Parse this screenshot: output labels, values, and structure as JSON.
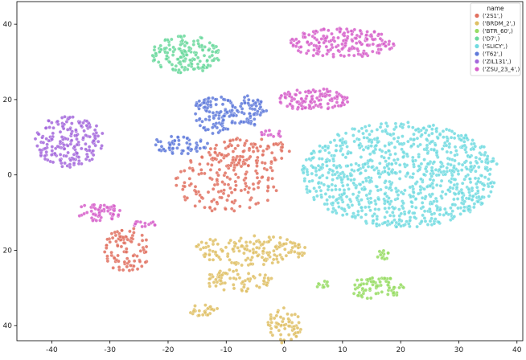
{
  "chart_data": {
    "type": "scatter",
    "title": "",
    "xlabel": "",
    "ylabel": "",
    "xlim": [
      -46,
      41
    ],
    "ylim": [
      -46,
      44
    ],
    "y_axis_inverted": true,
    "grid": false,
    "x_ticks": [
      -40,
      -30,
      -20,
      -10,
      0,
      10,
      20,
      30,
      40
    ],
    "y_ticks": [
      40,
      20,
      0,
      20,
      40
    ],
    "y_tick_values": [
      -40,
      -20,
      0,
      20,
      40
    ],
    "legend": {
      "title": "name",
      "placement": "top-right",
      "entries": [
        "('2S1',)",
        "('BRDM_2',)",
        "('BTR_60',)",
        "('D7',)",
        "('SLICY',)",
        "('T62',)",
        "('ZIL131',)",
        "('ZSU_23_4',)"
      ]
    },
    "series": [
      {
        "name": "('2S1',)",
        "color": "#e1705f",
        "clusters": [
          {
            "cx": -27,
            "cy": 20,
            "rx": 4,
            "ry": 6,
            "n": 90
          },
          {
            "cx": -10,
            "cy": 2,
            "rx": 9,
            "ry": 8,
            "n": 160
          },
          {
            "cx": -6,
            "cy": -6,
            "rx": 7,
            "ry": 4,
            "n": 90
          }
        ]
      },
      {
        "name": "('BRDM_2',)",
        "color": "#dfc065",
        "clusters": [
          {
            "cx": 0,
            "cy": 40,
            "rx": 3,
            "ry": 5,
            "n": 60
          },
          {
            "cx": -14,
            "cy": 36,
            "rx": 3,
            "ry": 1.5,
            "n": 25
          },
          {
            "cx": -8,
            "cy": 28,
            "rx": 6,
            "ry": 3,
            "n": 70
          },
          {
            "cx": -6,
            "cy": 20,
            "rx": 10,
            "ry": 4,
            "n": 160
          }
        ]
      },
      {
        "name": "('BTR_60',)",
        "color": "#96dc63",
        "clusters": [
          {
            "cx": 16,
            "cy": 30,
            "rx": 5,
            "ry": 3,
            "n": 80
          },
          {
            "cx": 7,
            "cy": 29,
            "rx": 2,
            "ry": 1,
            "n": 10
          },
          {
            "cx": 17,
            "cy": 21,
            "rx": 1.5,
            "ry": 1.5,
            "n": 12
          }
        ]
      },
      {
        "name": "('D7',)",
        "color": "#6ad89c",
        "clusters": [
          {
            "cx": -17,
            "cy": -32,
            "rx": 6,
            "ry": 5,
            "n": 160
          }
        ]
      },
      {
        "name": "('SLICY',)",
        "color": "#71dbe0",
        "clusters": [
          {
            "cx": 20,
            "cy": 0,
            "rx": 17,
            "ry": 14,
            "n": 950
          }
        ]
      },
      {
        "name": "('T62',)",
        "color": "#5f7ada",
        "clusters": [
          {
            "cx": -18,
            "cy": -8,
            "rx": 5,
            "ry": 2.5,
            "n": 60
          },
          {
            "cx": -12,
            "cy": -16,
            "rx": 4,
            "ry": 5,
            "n": 110
          },
          {
            "cx": -6,
            "cy": -17,
            "rx": 3,
            "ry": 4,
            "n": 60
          }
        ]
      },
      {
        "name": "('ZIL131',)",
        "color": "#a367dc",
        "clusters": [
          {
            "cx": -37,
            "cy": -9,
            "rx": 6,
            "ry": 7,
            "n": 190
          }
        ]
      },
      {
        "name": "('ZSU_23_4',)",
        "color": "#d65fca",
        "clusters": [
          {
            "cx": -32,
            "cy": 10,
            "rx": 4,
            "ry": 2.5,
            "n": 55
          },
          {
            "cx": -24,
            "cy": 13,
            "rx": 2,
            "ry": 1,
            "n": 15
          },
          {
            "cx": -2,
            "cy": -11,
            "rx": 2,
            "ry": 1,
            "n": 15
          },
          {
            "cx": 5,
            "cy": -20,
            "rx": 6,
            "ry": 3,
            "n": 120
          },
          {
            "cx": 10,
            "cy": -35,
            "rx": 9,
            "ry": 4,
            "n": 190
          }
        ]
      }
    ]
  }
}
